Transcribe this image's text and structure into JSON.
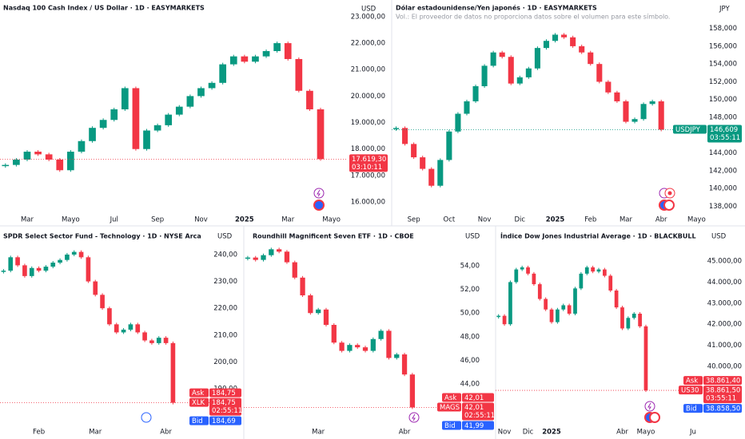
{
  "chart_data": [
    {
      "type": "candlestick",
      "title": "Nasdaq 100 Cash Index / US Dollar · 1D · EASYMARKETS",
      "currency": "USD",
      "categories": [
        null,
        null,
        "Mar",
        null,
        null,
        null,
        "Mayo",
        null,
        null,
        null,
        "Jul",
        null,
        null,
        null,
        "Sep",
        null,
        null,
        null,
        "Nov",
        null,
        null,
        null,
        "2025",
        null,
        null,
        null,
        "Mar",
        null,
        null,
        null,
        "Mayo",
        null
      ],
      "values": [
        17400,
        17600,
        17900,
        17800,
        17600,
        17200,
        17900,
        18300,
        18800,
        19100,
        19500,
        20300,
        18000,
        18700,
        18900,
        19300,
        19600,
        20000,
        20300,
        20500,
        21200,
        21500,
        21300,
        21500,
        21700,
        22000,
        21400,
        20200,
        19500,
        17619.3,
        null,
        null
      ],
      "ylim": [
        15640,
        23630
      ],
      "yticks": [
        {
          "value": 16000,
          "label": "16.000,00"
        },
        {
          "value": 17000,
          "label": "17.000,00"
        },
        {
          "value": 18000,
          "label": "18.000,00"
        },
        {
          "value": 19000,
          "label": "19.000,00"
        },
        {
          "value": 20000,
          "label": "20.000,00"
        },
        {
          "value": 21000,
          "label": "21.000,00"
        },
        {
          "value": 22000,
          "label": "22.000,00"
        },
        {
          "value": 23000,
          "label": "23.000,00"
        }
      ],
      "up_color": "#089981",
      "down_color": "#f23645",
      "tags": [
        {
          "value": "17.619,30",
          "time": "03:10:11",
          "color": "#f23645"
        }
      ]
    },
    {
      "type": "candlestick",
      "title": "Dólar estadounidense/Yen japonés · 1D · EASYMARKETS",
      "subtitle": "Vol.: El proveedor de datos no proporciona datos sobre el volumen para este símbolo.",
      "currency": "JPY",
      "categories": [
        null,
        null,
        "Sep",
        null,
        null,
        null,
        "Oct",
        null,
        null,
        null,
        "Nov",
        null,
        null,
        null,
        "Dic",
        null,
        null,
        null,
        "2025",
        null,
        null,
        null,
        "Feb",
        null,
        null,
        null,
        "Mar",
        null,
        null,
        null,
        "Abr",
        null,
        null,
        null,
        "Mayo",
        null
      ],
      "values": [
        146.8,
        145.0,
        143.5,
        142.2,
        140.3,
        143.2,
        146.4,
        148.4,
        149.8,
        151.5,
        153.8,
        155.3,
        154.8,
        151.8,
        152.5,
        153.5,
        155.8,
        156.6,
        157.3,
        157.0,
        156.0,
        155.3,
        154.0,
        152.0,
        150.8,
        149.8,
        147.5,
        147.8,
        149.5,
        149.8,
        146.609,
        null,
        null,
        null,
        null,
        null
      ],
      "ylim": [
        137.4,
        161.2
      ],
      "yticks": [
        {
          "value": 138,
          "label": "138,000"
        },
        {
          "value": 140,
          "label": "140,000"
        },
        {
          "value": 142,
          "label": "142,000"
        },
        {
          "value": 144,
          "label": "144,000"
        },
        {
          "value": 146,
          "label": "146,000"
        },
        {
          "value": 148,
          "label": "148,000"
        },
        {
          "value": 150,
          "label": "150,000"
        },
        {
          "value": 152,
          "label": "152,000"
        },
        {
          "value": 154,
          "label": "154,000"
        },
        {
          "value": 156,
          "label": "156,000"
        },
        {
          "value": 158,
          "label": "158,000"
        }
      ],
      "up_color": "#089981",
      "down_color": "#f23645",
      "tags": [
        {
          "name": "USDJPY",
          "value": "146,609",
          "time": "03:55:11",
          "color": "#089981"
        }
      ]
    },
    {
      "type": "candlestick",
      "title": "SPDR Select Sector Fund - Technology · 1D · NYSE Arca",
      "currency": "USD",
      "categories": [
        null,
        null,
        null,
        null,
        null,
        "Feb",
        null,
        null,
        null,
        null,
        null,
        null,
        null,
        "Mar",
        null,
        null,
        null,
        null,
        null,
        null,
        null,
        null,
        null,
        "Abr",
        null,
        null,
        null,
        null,
        null,
        null
      ],
      "values": [
        234,
        239,
        236,
        232,
        235,
        234,
        235.5,
        237,
        238,
        240,
        241,
        239,
        230,
        225,
        220,
        214,
        211,
        212,
        214,
        211,
        208,
        207,
        209,
        207,
        184.75,
        null,
        null,
        null,
        null,
        null
      ],
      "ylim": [
        177.2,
        250.7
      ],
      "yticks": [
        {
          "value": 190,
          "label": "190,00"
        },
        {
          "value": 200,
          "label": "200,00"
        },
        {
          "value": 210,
          "label": "210,00"
        },
        {
          "value": 220,
          "label": "220,00"
        },
        {
          "value": 230,
          "label": "230,00"
        },
        {
          "value": 240,
          "label": "240,00"
        }
      ],
      "up_color": "#089981",
      "down_color": "#f23645",
      "tags": [
        {
          "name": "Ask",
          "value": "184,75",
          "color": "#f23645"
        },
        {
          "name": "XLK",
          "value": "184,75",
          "time": "02:55:11",
          "color": "#f23645"
        },
        {
          "name": "Bid",
          "value": "184,69",
          "color": "#2962ff"
        }
      ]
    },
    {
      "type": "candlestick",
      "title": "Roundhill Magnificent Seven ETF · 1D · CBOE",
      "currency": "USD",
      "categories": [
        null,
        null,
        null,
        null,
        null,
        null,
        null,
        null,
        null,
        "Mar",
        null,
        null,
        null,
        null,
        null,
        null,
        null,
        null,
        null,
        null,
        "Abr",
        null,
        null,
        null,
        null,
        null
      ],
      "values": [
        54.7,
        54.5,
        54.9,
        55.4,
        55.2,
        54.3,
        53.0,
        51.5,
        50.0,
        50.3,
        49.0,
        47.5,
        46.8,
        47.3,
        47.1,
        46.8,
        47.8,
        48.5,
        46.2,
        46.5,
        44.8,
        42.01,
        null,
        null,
        null,
        null
      ],
      "ylim": [
        40.69,
        57.38
      ],
      "yticks": [
        {
          "value": 44,
          "label": "44,00"
        },
        {
          "value": 46,
          "label": "46,00"
        },
        {
          "value": 48,
          "label": "48,00"
        },
        {
          "value": 50,
          "label": "50,00"
        },
        {
          "value": 52,
          "label": "52,00"
        },
        {
          "value": 54,
          "label": "54,00"
        }
      ],
      "up_color": "#089981",
      "down_color": "#f23645",
      "tags": [
        {
          "name": "Ask",
          "value": "42,01",
          "color": "#f23645"
        },
        {
          "name": "MAGS",
          "value": "42,01",
          "time": "02:55:11",
          "color": "#f23645"
        },
        {
          "name": "Bid",
          "value": "41,99",
          "color": "#2962ff"
        }
      ]
    },
    {
      "type": "candlestick",
      "title": "Índice Dow Jones Industrial Average · 1D · BLACKBULL",
      "currency": "USD",
      "categories": [
        null,
        "Nov",
        null,
        null,
        null,
        "Dic",
        null,
        null,
        null,
        "2025",
        null,
        null,
        null,
        null,
        null,
        null,
        null,
        null,
        null,
        null,
        null,
        "Abr",
        null,
        null,
        null,
        "Mayo",
        null,
        null,
        null,
        null,
        null,
        null,
        null,
        "Ju",
        null
      ],
      "values": [
        42400,
        42000,
        44000,
        44600,
        44700,
        44400,
        43900,
        43200,
        42700,
        42100,
        42700,
        42900,
        42500,
        43700,
        44400,
        44700,
        44500,
        44600,
        44300,
        43600,
        42800,
        41800,
        42300,
        42500,
        41900,
        38861.5,
        null,
        null,
        null,
        null,
        null,
        null,
        null,
        null,
        null
      ],
      "ylim": [
        37311,
        46667
      ],
      "yticks": [
        {
          "value": 40000,
          "label": "40.000,00"
        },
        {
          "value": 41000,
          "label": "41.000,00"
        },
        {
          "value": 42000,
          "label": "42.000,00"
        },
        {
          "value": 43000,
          "label": "43.000,00"
        },
        {
          "value": 44000,
          "label": "44.000,00"
        },
        {
          "value": 45000,
          "label": "45.000,00"
        }
      ],
      "up_color": "#089981",
      "down_color": "#f23645",
      "tags": [
        {
          "name": "US30",
          "value": "38.861,50",
          "time": "03:55:11",
          "color": "#f23645"
        },
        {
          "name": "Ask",
          "value": "38.861,40",
          "color": "#f23645"
        },
        {
          "name": "Bid",
          "value": "38.858,50",
          "color": "#2962ff"
        }
      ]
    }
  ]
}
